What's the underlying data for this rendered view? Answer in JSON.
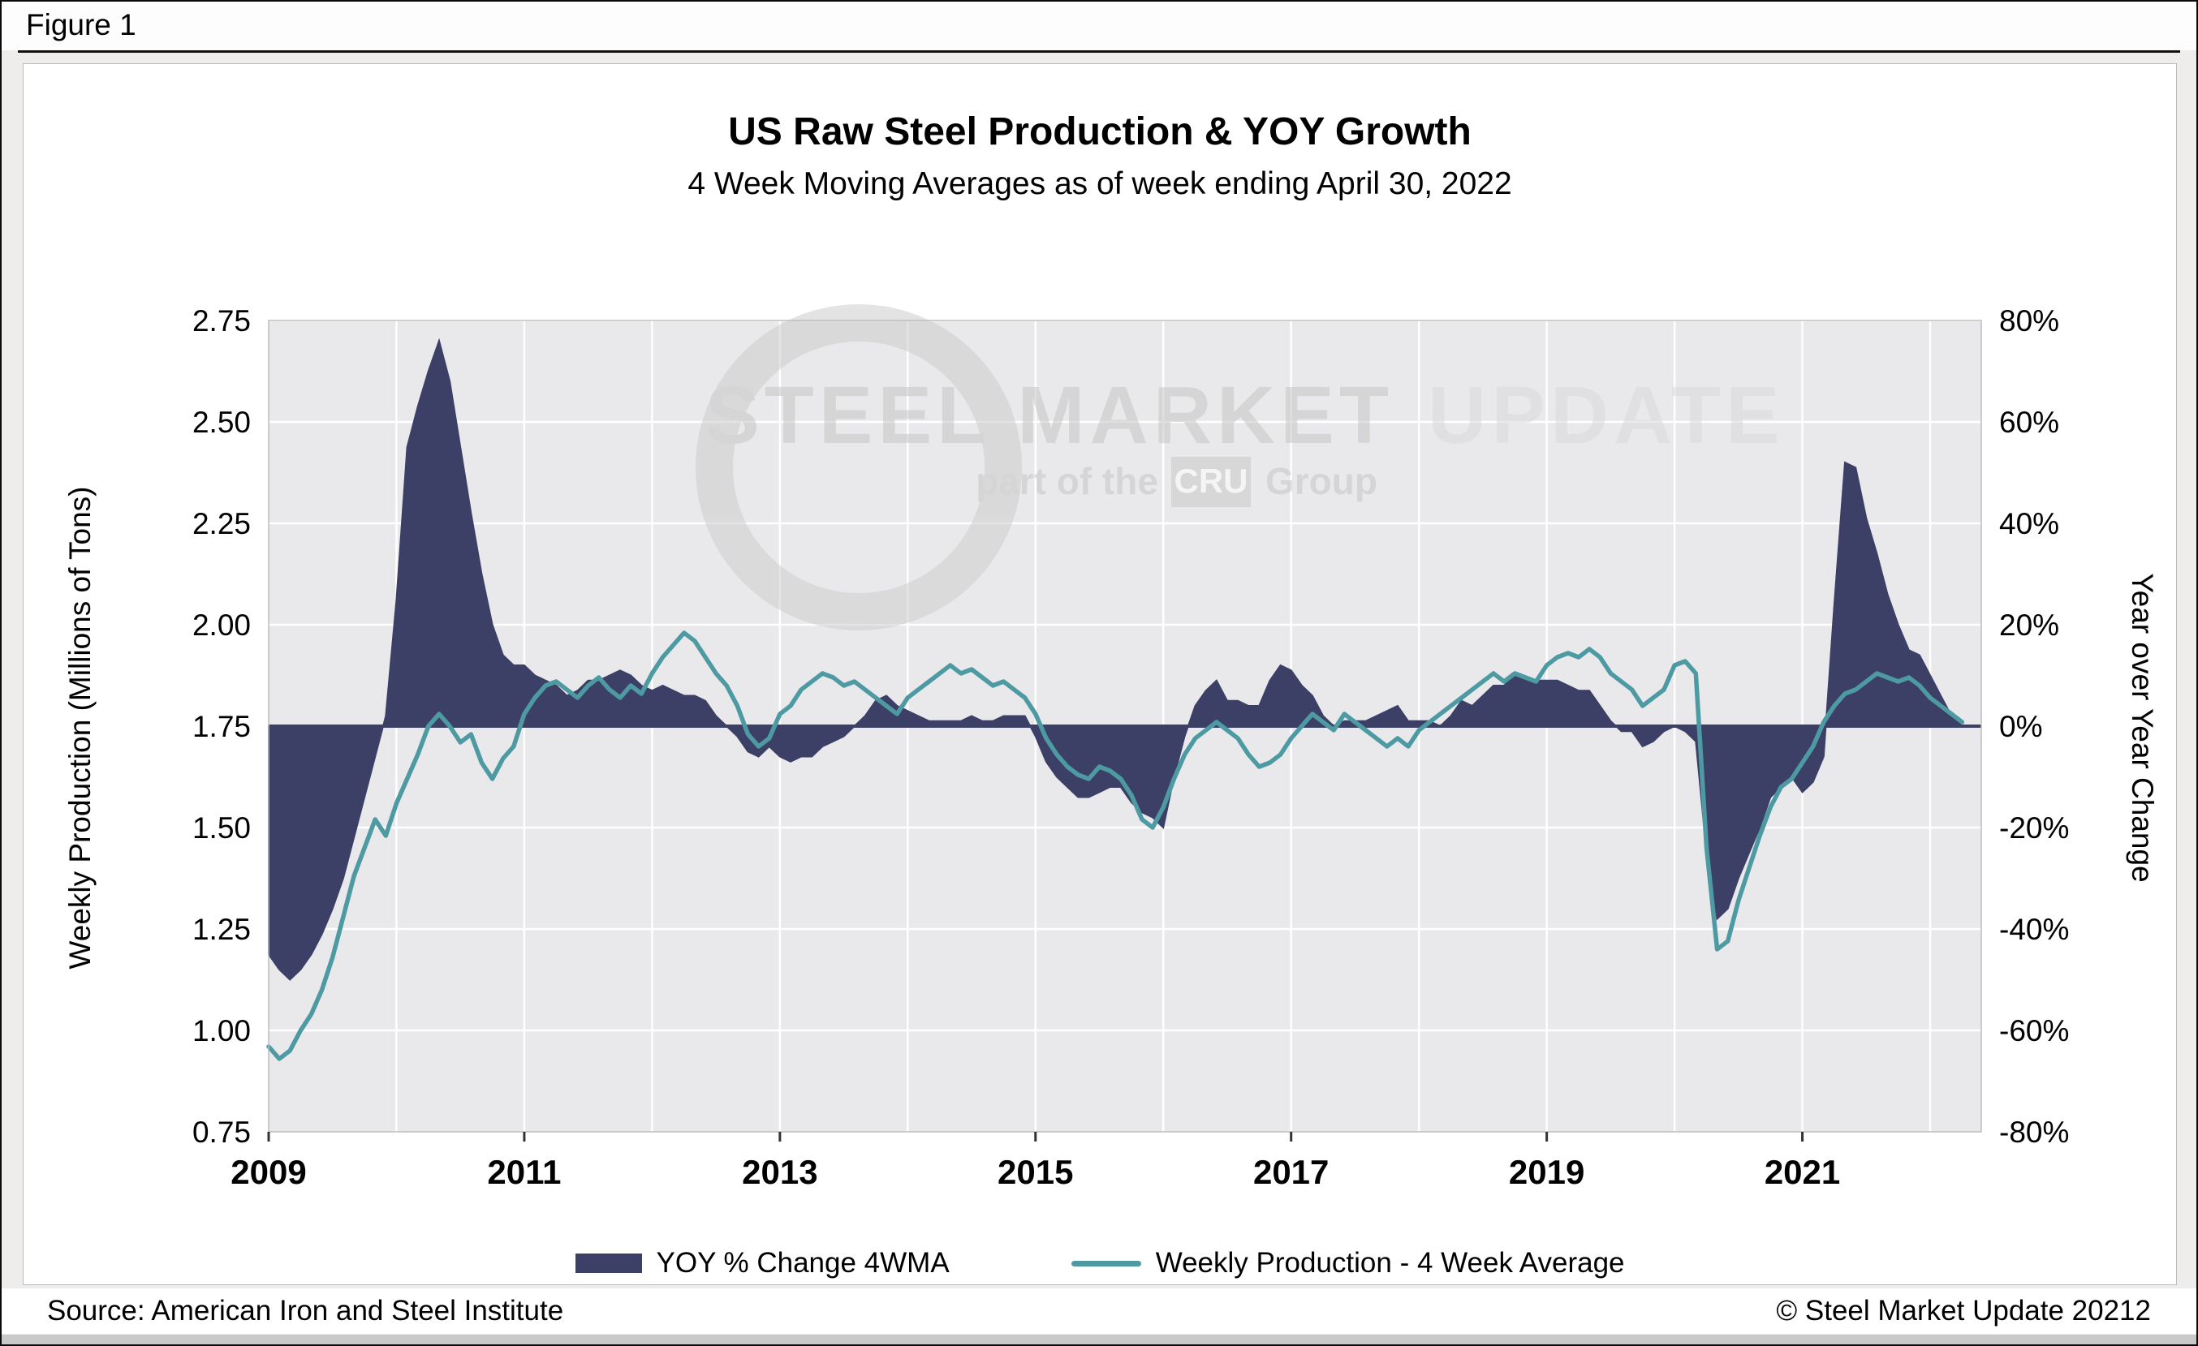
{
  "figure_label": "Figure 1",
  "footer": {
    "source": "Source: American Iron and Steel Institute",
    "copyright": "© Steel Market Update 20212"
  },
  "watermark": {
    "brand_left": "STEEL MARKET",
    "brand_right": "UPDATE",
    "tagline_prefix": "part of the",
    "tagline_box": "CRU",
    "tagline_suffix": "Group"
  },
  "chart_data": {
    "type": "line",
    "title": "US Raw Steel Production & YOY Growth",
    "subtitle": "4 Week Moving Averages as of week ending April 30, 2022",
    "x_start_year": 2009,
    "x_step": "monthly",
    "x_axis": {
      "range": [
        2009,
        2022.4
      ],
      "tick_years": [
        2009,
        2011,
        2013,
        2015,
        2017,
        2019,
        2021
      ]
    },
    "left_axis": {
      "label": "Weekly Production (Millions of Tons)",
      "range": [
        0.75,
        2.75
      ],
      "ticks": [
        "2.75",
        "2.50",
        "2.25",
        "2.00",
        "1.75",
        "1.50",
        "1.25",
        "1.00",
        "0.75"
      ],
      "tick_values": [
        2.75,
        2.5,
        2.25,
        2.0,
        1.75,
        1.5,
        1.25,
        1.0,
        0.75
      ]
    },
    "right_axis": {
      "label": "Year over Year Change",
      "range": [
        -80,
        80
      ],
      "ticks": [
        "80%",
        "60%",
        "40%",
        "20%",
        "0%",
        "-20%",
        "-40%",
        "-60%",
        "-80%"
      ],
      "tick_values": [
        80,
        60,
        40,
        20,
        0,
        -20,
        -40,
        -60,
        -80
      ]
    },
    "colors": {
      "plot_bg": "#e9e9ec",
      "grid": "#ffffff",
      "zero_line": "#3c3f66"
    },
    "legend_position": "bottom",
    "series": [
      {
        "name": "YOY % Change 4WMA",
        "type": "area",
        "axis": "right",
        "unit": "%",
        "color": "#3c3f66",
        "values": [
          -45,
          -48,
          -50,
          -48,
          -45,
          -41,
          -36,
          -30,
          -22,
          -14,
          -6,
          2,
          25,
          55,
          63,
          70,
          76,
          68,
          55,
          42,
          30,
          20,
          14,
          12,
          12,
          10,
          9,
          8,
          6,
          7,
          9,
          9,
          10,
          11,
          10,
          8,
          7,
          8,
          7,
          6,
          6,
          5,
          2,
          0,
          -2,
          -5,
          -6,
          -4,
          -6,
          -7,
          -6,
          -6,
          -4,
          -3,
          -2,
          0,
          2,
          5,
          6,
          4,
          3,
          2,
          1,
          1,
          1,
          1,
          2,
          1,
          1,
          2,
          2,
          2,
          -2,
          -7,
          -10,
          -12,
          -14,
          -14,
          -13,
          -12,
          -12,
          -15,
          -17,
          -18,
          -20,
          -10,
          -2,
          4,
          7,
          9,
          5,
          5,
          4,
          4,
          9,
          12,
          11,
          8,
          6,
          2,
          0,
          1,
          1,
          1,
          2,
          3,
          4,
          1,
          1,
          1,
          0,
          2,
          5,
          4,
          6,
          8,
          8,
          10,
          9,
          9,
          9,
          9,
          8,
          7,
          7,
          4,
          1,
          -1,
          -1,
          -4,
          -3,
          -1,
          0,
          -1,
          -3,
          -25,
          -38,
          -36,
          -30,
          -25,
          -20,
          -14,
          -12,
          -10,
          -13,
          -11,
          -6,
          24,
          52,
          51,
          41,
          34,
          26,
          20,
          15,
          14,
          10,
          6,
          2,
          0
        ]
      },
      {
        "name": "Weekly Production - 4 Week Average",
        "type": "line",
        "axis": "left",
        "unit": "million tons",
        "color": "#4d9aa2",
        "values": [
          0.96,
          0.93,
          0.95,
          1.0,
          1.04,
          1.1,
          1.18,
          1.28,
          1.38,
          1.45,
          1.52,
          1.48,
          1.56,
          1.62,
          1.68,
          1.75,
          1.78,
          1.75,
          1.71,
          1.73,
          1.66,
          1.62,
          1.67,
          1.7,
          1.78,
          1.82,
          1.85,
          1.86,
          1.84,
          1.82,
          1.85,
          1.87,
          1.84,
          1.82,
          1.85,
          1.83,
          1.88,
          1.92,
          1.95,
          1.98,
          1.96,
          1.92,
          1.88,
          1.85,
          1.8,
          1.73,
          1.7,
          1.72,
          1.78,
          1.8,
          1.84,
          1.86,
          1.88,
          1.87,
          1.85,
          1.86,
          1.84,
          1.82,
          1.8,
          1.78,
          1.82,
          1.84,
          1.86,
          1.88,
          1.9,
          1.88,
          1.89,
          1.87,
          1.85,
          1.86,
          1.84,
          1.82,
          1.78,
          1.72,
          1.68,
          1.65,
          1.63,
          1.62,
          1.65,
          1.64,
          1.62,
          1.58,
          1.52,
          1.5,
          1.55,
          1.62,
          1.68,
          1.72,
          1.74,
          1.76,
          1.74,
          1.72,
          1.68,
          1.65,
          1.66,
          1.68,
          1.72,
          1.75,
          1.78,
          1.76,
          1.74,
          1.78,
          1.76,
          1.74,
          1.72,
          1.7,
          1.72,
          1.7,
          1.74,
          1.76,
          1.78,
          1.8,
          1.82,
          1.84,
          1.86,
          1.88,
          1.86,
          1.88,
          1.87,
          1.86,
          1.9,
          1.92,
          1.93,
          1.92,
          1.94,
          1.92,
          1.88,
          1.86,
          1.84,
          1.8,
          1.82,
          1.84,
          1.9,
          1.91,
          1.88,
          1.45,
          1.2,
          1.22,
          1.32,
          1.4,
          1.48,
          1.55,
          1.6,
          1.62,
          1.66,
          1.7,
          1.76,
          1.8,
          1.83,
          1.84,
          1.86,
          1.88,
          1.87,
          1.86,
          1.87,
          1.85,
          1.82,
          1.8,
          1.78,
          1.76
        ]
      }
    ]
  }
}
